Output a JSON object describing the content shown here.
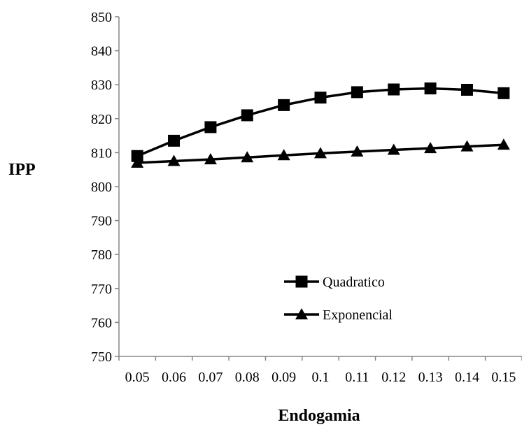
{
  "chart_data": {
    "type": "line",
    "title": "",
    "xlabel": "Endogamia",
    "ylabel": "IPP",
    "categories": [
      "0.05",
      "0.06",
      "0.07",
      "0.08",
      "0.09",
      "0.1",
      "0.11",
      "0.12",
      "0.13",
      "0.14",
      "0.15"
    ],
    "ylim": [
      750,
      850
    ],
    "yticks": [
      750,
      760,
      770,
      780,
      790,
      800,
      810,
      820,
      830,
      840,
      850
    ],
    "grid": false,
    "legend_position": "bottom-right-inside",
    "series": [
      {
        "name": "Quadratico",
        "marker": "square",
        "color": "#000000",
        "values": [
          809,
          813.5,
          817.5,
          821,
          824,
          826.2,
          827.8,
          828.6,
          828.9,
          828.5,
          827.5
        ]
      },
      {
        "name": "Exponencial",
        "marker": "triangle",
        "color": "#000000",
        "values": [
          807,
          807.5,
          808,
          808.6,
          809.2,
          809.8,
          810.3,
          810.8,
          811.3,
          811.8,
          812.3
        ]
      }
    ]
  }
}
